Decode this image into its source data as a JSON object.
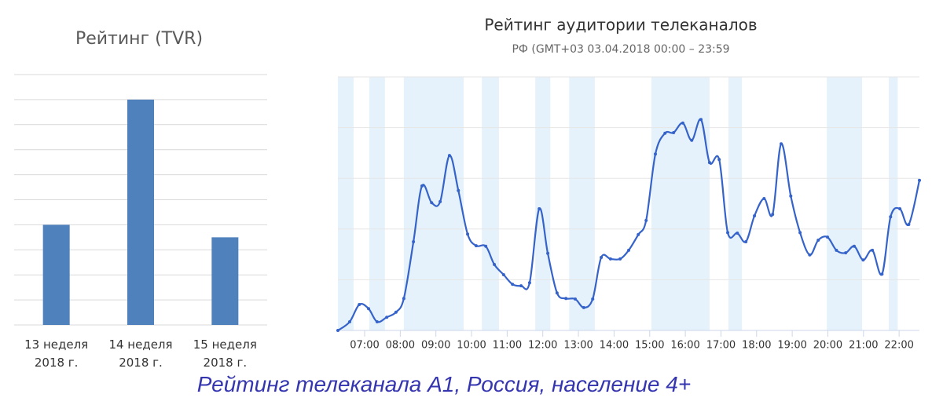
{
  "chart_data": [
    {
      "type": "bar",
      "title": "Рейтинг (TVR)",
      "categories": [
        "13 неделя 2018 г.",
        "14 неделя 2018 г.",
        "15 неделя 2018 г."
      ],
      "values": [
        4,
        9,
        3.5
      ],
      "color": "#4f81bd",
      "ylim": [
        0,
        10
      ],
      "yticks": [
        0,
        1,
        2,
        3,
        4,
        5,
        6,
        7,
        8,
        9,
        10
      ],
      "grid": true
    },
    {
      "type": "line",
      "title": "Рейтинг аудитории телеканалов",
      "subtitle": "РФ (GMT+03 03.04.2018 00:00 – 23:59",
      "color": "#3563c9",
      "grid": true,
      "xlim": [
        6.25,
        22.57
      ],
      "ylim": [
        0,
        5
      ],
      "yticks": [
        0,
        1,
        2,
        3,
        4,
        5
      ],
      "xticks": [
        {
          "value": 7,
          "label": "07:00"
        },
        {
          "value": 8,
          "label": "08:00"
        },
        {
          "value": 9,
          "label": "09:00"
        },
        {
          "value": 10,
          "label": "10:00"
        },
        {
          "value": 11,
          "label": "11:00"
        },
        {
          "value": 12,
          "label": "12:00"
        },
        {
          "value": 13,
          "label": "13:00"
        },
        {
          "value": 14,
          "label": "14:00"
        },
        {
          "value": 15,
          "label": "15:00"
        },
        {
          "value": 16,
          "label": "16:00"
        },
        {
          "value": 17,
          "label": "17:00"
        },
        {
          "value": 18,
          "label": "18:00"
        },
        {
          "value": 19,
          "label": "19:00"
        },
        {
          "value": 20,
          "label": "20:00"
        },
        {
          "value": 21,
          "label": "21:00"
        },
        {
          "value": 22,
          "label": "22:00"
        }
      ],
      "bands": [
        [
          6.25,
          6.69
        ],
        [
          7.13,
          7.57
        ],
        [
          8.1,
          9.78
        ],
        [
          10.29,
          10.77
        ],
        [
          11.79,
          12.21
        ],
        [
          12.74,
          13.46
        ],
        [
          15.05,
          16.68
        ],
        [
          17.21,
          17.59
        ],
        [
          19.97,
          20.96
        ],
        [
          21.71,
          21.96
        ]
      ],
      "band_color": "#e6f2fb",
      "x": [
        6.25,
        6.58,
        6.85,
        7.11,
        7.35,
        7.62,
        7.88,
        8.1,
        8.37,
        8.61,
        8.88,
        9.12,
        9.38,
        9.63,
        9.89,
        10.13,
        10.4,
        10.64,
        10.9,
        11.15,
        11.39,
        11.63,
        11.9,
        12.14,
        12.4,
        12.65,
        12.91,
        13.15,
        13.4,
        13.64,
        13.9,
        14.17,
        14.41,
        14.68,
        14.9,
        15.16,
        15.43,
        15.67,
        15.93,
        16.18,
        16.44,
        16.68,
        16.95,
        17.19,
        17.46,
        17.7,
        17.94,
        18.21,
        18.45,
        18.69,
        18.96,
        19.22,
        19.49,
        19.73,
        19.99,
        20.24,
        20.5,
        20.74,
        20.99,
        21.25,
        21.52,
        21.76,
        22.02,
        22.27,
        22.57
      ],
      "values": [
        0,
        0.17,
        0.51,
        0.43,
        0.17,
        0.26,
        0.36,
        0.63,
        1.75,
        2.85,
        2.52,
        2.54,
        3.45,
        2.76,
        1.9,
        1.67,
        1.66,
        1.3,
        1.1,
        0.91,
        0.88,
        0.94,
        2.4,
        1.52,
        0.74,
        0.63,
        0.62,
        0.45,
        0.62,
        1.44,
        1.41,
        1.41,
        1.58,
        1.89,
        2.17,
        3.48,
        3.89,
        3.9,
        4.09,
        3.75,
        4.16,
        3.31,
        3.37,
        1.93,
        1.92,
        1.75,
        2.26,
        2.6,
        2.29,
        3.68,
        2.65,
        1.93,
        1.49,
        1.78,
        1.84,
        1.58,
        1.53,
        1.66,
        1.39,
        1.58,
        1.11,
        2.24,
        2.4,
        2.09,
        2.96
      ]
    }
  ],
  "caption": "Рейтинг телеканала А1, Россия, население 4+"
}
